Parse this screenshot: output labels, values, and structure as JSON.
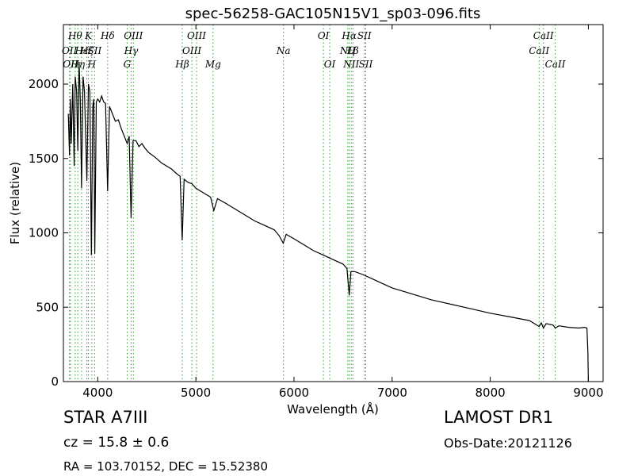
{
  "chart_data": {
    "type": "line",
    "title": "spec-56258-GAC105N15V1_sp03-096.fits",
    "xlabel": "Wavelength (Å)",
    "ylabel": "Flux (relative)",
    "xlim": [
      3650,
      9150
    ],
    "ylim": [
      0,
      2400
    ],
    "xticks": [
      4000,
      5000,
      6000,
      7000,
      8000,
      9000
    ],
    "xtick_labels": [
      "4000",
      "5000",
      "6000",
      "7000",
      "8000",
      "9000"
    ],
    "yticks": [
      0,
      500,
      1000,
      1500,
      2000
    ],
    "ytick_labels": [
      "0",
      "500",
      "1000",
      "1500",
      "2000"
    ],
    "grid": false,
    "line_color": "#000000",
    "marker_color": "#2ca02c",
    "spectrum": [
      [
        3700,
        1800
      ],
      [
        3712,
        1520
      ],
      [
        3720,
        1900
      ],
      [
        3730,
        1600
      ],
      [
        3745,
        2000
      ],
      [
        3760,
        1450
      ],
      [
        3770,
        2050
      ],
      [
        3785,
        1950
      ],
      [
        3797,
        1550
      ],
      [
        3810,
        2150
      ],
      [
        3822,
        1900
      ],
      [
        3835,
        1300
      ],
      [
        3850,
        2050
      ],
      [
        3865,
        1950
      ],
      [
        3889,
        1350
      ],
      [
        3905,
        2000
      ],
      [
        3920,
        1950
      ],
      [
        3935,
        850
      ],
      [
        3950,
        1850
      ],
      [
        3960,
        1900
      ],
      [
        3970,
        860
      ],
      [
        3985,
        1880
      ],
      [
        4000,
        1900
      ],
      [
        4020,
        1880
      ],
      [
        4040,
        1920
      ],
      [
        4060,
        1880
      ],
      [
        4080,
        1870
      ],
      [
        4101,
        1280
      ],
      [
        4120,
        1850
      ],
      [
        4150,
        1800
      ],
      [
        4180,
        1750
      ],
      [
        4210,
        1760
      ],
      [
        4240,
        1700
      ],
      [
        4270,
        1650
      ],
      [
        4300,
        1600
      ],
      [
        4320,
        1650
      ],
      [
        4340,
        1100
      ],
      [
        4360,
        1620
      ],
      [
        4390,
        1620
      ],
      [
        4420,
        1580
      ],
      [
        4450,
        1600
      ],
      [
        4480,
        1570
      ],
      [
        4520,
        1540
      ],
      [
        4560,
        1520
      ],
      [
        4600,
        1500
      ],
      [
        4650,
        1470
      ],
      [
        4700,
        1450
      ],
      [
        4750,
        1430
      ],
      [
        4800,
        1400
      ],
      [
        4840,
        1380
      ],
      [
        4861,
        950
      ],
      [
        4880,
        1360
      ],
      [
        4920,
        1340
      ],
      [
        4960,
        1330
      ],
      [
        5000,
        1300
      ],
      [
        5050,
        1280
      ],
      [
        5100,
        1260
      ],
      [
        5150,
        1240
      ],
      [
        5183,
        1150
      ],
      [
        5220,
        1230
      ],
      [
        5300,
        1200
      ],
      [
        5400,
        1160
      ],
      [
        5500,
        1120
      ],
      [
        5600,
        1080
      ],
      [
        5700,
        1050
      ],
      [
        5800,
        1020
      ],
      [
        5850,
        980
      ],
      [
        5890,
        930
      ],
      [
        5920,
        990
      ],
      [
        6000,
        960
      ],
      [
        6100,
        920
      ],
      [
        6200,
        880
      ],
      [
        6300,
        850
      ],
      [
        6400,
        820
      ],
      [
        6500,
        790
      ],
      [
        6540,
        760
      ],
      [
        6563,
        580
      ],
      [
        6580,
        740
      ],
      [
        6620,
        740
      ],
      [
        6700,
        720
      ],
      [
        6800,
        690
      ],
      [
        6900,
        660
      ],
      [
        7000,
        630
      ],
      [
        7200,
        590
      ],
      [
        7400,
        550
      ],
      [
        7600,
        520
      ],
      [
        7800,
        490
      ],
      [
        8000,
        460
      ],
      [
        8200,
        435
      ],
      [
        8400,
        410
      ],
      [
        8498,
        370
      ],
      [
        8520,
        395
      ],
      [
        8542,
        360
      ],
      [
        8570,
        390
      ],
      [
        8640,
        380
      ],
      [
        8662,
        360
      ],
      [
        8700,
        375
      ],
      [
        8800,
        365
      ],
      [
        8900,
        360
      ],
      [
        8960,
        365
      ],
      [
        8985,
        360
      ],
      [
        8995,
        200
      ],
      [
        9000,
        0
      ]
    ],
    "line_markers": [
      {
        "x": 3712,
        "label": "OII",
        "row": 1
      },
      {
        "x": 3722,
        "label": "OII",
        "row": 2
      },
      {
        "x": 3770,
        "label": "Hθ",
        "row": 0
      },
      {
        "x": 3797,
        "label": "Hη",
        "row": 2
      },
      {
        "x": 3835,
        "label": "Hε",
        "row": 1
      },
      {
        "x": 3889,
        "label": "Hζ",
        "row": 1
      },
      {
        "x": 3905,
        "label": "K",
        "row": 0
      },
      {
        "x": 3940,
        "label": "H",
        "row": 2
      },
      {
        "x": 3968,
        "label": "SII",
        "row": 1
      },
      {
        "x": 4101,
        "label": "Hδ",
        "row": 0
      },
      {
        "x": 4300,
        "label": "G",
        "row": 2
      },
      {
        "x": 4340,
        "label": "Hγ",
        "row": 1
      },
      {
        "x": 4363,
        "label": "OIII",
        "row": 0
      },
      {
        "x": 4861,
        "label": "Hβ",
        "row": 2
      },
      {
        "x": 4959,
        "label": "OIII",
        "row": 1
      },
      {
        "x": 5007,
        "label": "OIII",
        "row": 0
      },
      {
        "x": 5175,
        "label": "Mg",
        "row": 2
      },
      {
        "x": 5893,
        "label": "Na",
        "row": 1
      },
      {
        "x": 6300,
        "label": "OI",
        "row": 0
      },
      {
        "x": 6364,
        "label": "OI",
        "row": 2
      },
      {
        "x": 6548,
        "label": "NII",
        "row": 1
      },
      {
        "x": 6563,
        "label": "Hα",
        "row": 0
      },
      {
        "x": 6584,
        "label": "NII",
        "row": 2
      },
      {
        "x": 6600,
        "label": "Lβ",
        "row": 1
      },
      {
        "x": 6717,
        "label": "SII",
        "row": 0
      },
      {
        "x": 6731,
        "label": "SII",
        "row": 2
      },
      {
        "x": 8498,
        "label": "CaII",
        "row": 1
      },
      {
        "x": 8542,
        "label": "CaII",
        "row": 0
      },
      {
        "x": 8662,
        "label": "CaII",
        "row": 2
      }
    ]
  },
  "info": {
    "class_label": "STAR   A7III",
    "cz_label": "cz = 15.8 ± 0.6",
    "radec_label": "RA = 103.70152, DEC = 15.52380",
    "survey": "LAMOST DR1",
    "obs_date": "Obs-Date:20121126"
  }
}
